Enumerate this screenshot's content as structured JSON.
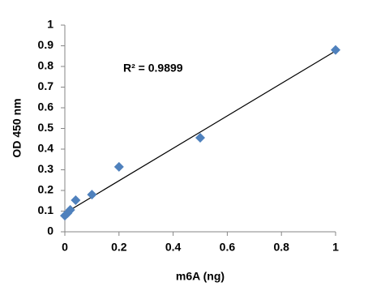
{
  "chart_data": {
    "type": "scatter",
    "x_label": "m6A (ng)",
    "y_label": "OD 450 nm",
    "annotation": "R² = 0.9899",
    "series": [
      {
        "color": "#4f81bd",
        "x": [
          0,
          0.01,
          0.02,
          0.04,
          0.1,
          0.2,
          0.5,
          1
        ],
        "values": [
          0.078,
          0.09,
          0.106,
          0.153,
          0.18,
          0.314,
          0.455,
          0.88
        ]
      }
    ],
    "trendline": {
      "x": [
        0,
        1
      ],
      "values": [
        0.09,
        0.875
      ],
      "color": "#000000"
    },
    "xlim": [
      0,
      1
    ],
    "xticks": [
      0,
      0.2,
      0.4,
      0.6,
      0.8,
      1
    ],
    "ylim": [
      0,
      1
    ],
    "yticks": [
      0,
      0.1,
      0.2,
      0.3,
      0.4,
      0.5,
      0.6,
      0.7,
      0.8,
      0.9,
      1
    ],
    "grid": false
  }
}
